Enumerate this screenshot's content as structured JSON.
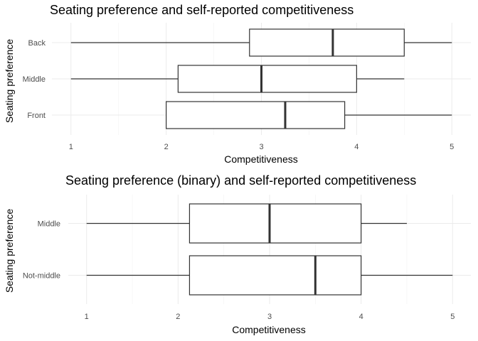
{
  "chart_data": [
    {
      "type": "boxplot",
      "title": "Seating preference and self-reported competitiveness",
      "xlabel": "Competitiveness",
      "ylabel": "Seating preference",
      "xlim": [
        0.8,
        5.2
      ],
      "xticks": [
        "1",
        "2",
        "3",
        "4",
        "5"
      ],
      "grid": true,
      "categories": [
        "Back",
        "Middle",
        "Front"
      ],
      "boxes": [
        {
          "category": "Back",
          "min": 1.0,
          "q1": 2.875,
          "median": 3.75,
          "q3": 4.5,
          "max": 5.0
        },
        {
          "category": "Middle",
          "min": 1.0,
          "q1": 2.125,
          "median": 3.0,
          "q3": 4.0,
          "max": 4.5
        },
        {
          "category": "Front",
          "min": 2.0,
          "q1": 2.0,
          "median": 3.25,
          "q3": 3.875,
          "max": 5.0
        }
      ]
    },
    {
      "type": "boxplot",
      "title": "Seating preference (binary) and self-reported competitiveness",
      "xlabel": "Competitiveness",
      "ylabel": "Seating preference",
      "xlim": [
        0.8,
        5.2
      ],
      "xticks": [
        "1",
        "2",
        "3",
        "4",
        "5"
      ],
      "grid": true,
      "categories": [
        "Middle",
        "Not-middle"
      ],
      "boxes": [
        {
          "category": "Middle",
          "min": 1.0,
          "q1": 2.125,
          "median": 3.0,
          "q3": 4.0,
          "max": 4.5
        },
        {
          "category": "Not-middle",
          "min": 1.0,
          "q1": 2.125,
          "median": 3.5,
          "q3": 4.0,
          "max": 5.0
        }
      ]
    }
  ]
}
